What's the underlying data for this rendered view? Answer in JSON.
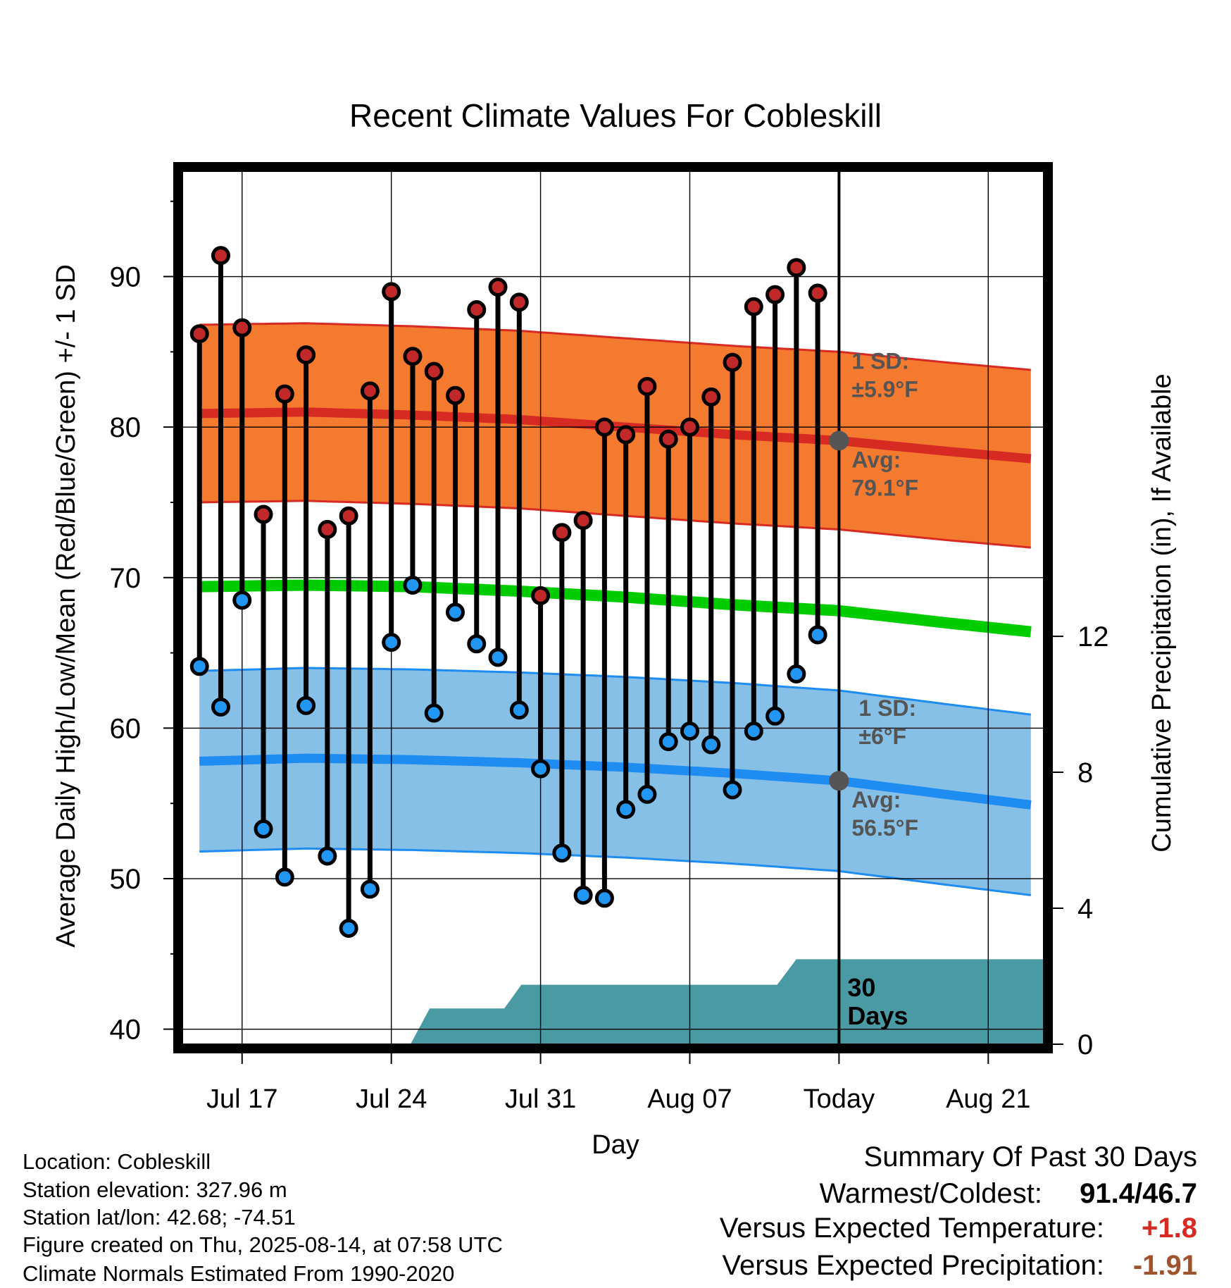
{
  "chart_data": {
    "type": "line",
    "title": "Recent Climate Values For Cobleskill",
    "xlabel": "Day",
    "ylabel": "Average Daily High/Low/Mean (Red/Blue/Green) +/- 1 SD",
    "y2label": "Cumulative Precipitation (in), If Available",
    "x_tick_labels": [
      "Jul 17",
      "Jul 24",
      "Jul 31",
      "Aug 07",
      "Today",
      "Aug 21"
    ],
    "x_tick_days": [
      0,
      7,
      14,
      21,
      28,
      35
    ],
    "x_range_days": [
      -2.8,
      37.6
    ],
    "today_day": 28,
    "ylim": [
      39,
      97
    ],
    "y_ticks": [
      40,
      50,
      60,
      70,
      80,
      90
    ],
    "y2_ticks": [
      0,
      4,
      8,
      12
    ],
    "y2_scale": {
      "top_value": 12,
      "top_temp": 66.1
    },
    "colors": {
      "high_band": "#f47a30",
      "high_band_edge": "#d62a22",
      "high_avg": "#d62a22",
      "low_band": "#86c0e6",
      "low_band_edge": "#1e8cf0",
      "low_avg": "#1e8cf0",
      "mean": "#00cc00",
      "precip": "#4a9aa3",
      "high_dot": "#c0282a",
      "low_dot": "#2196f3",
      "avg_marker": "#555555",
      "annotation": "#555555",
      "departure_temp": "#d62a22",
      "departure_precip": "#a0522d"
    },
    "normals": {
      "days": [
        -2,
        3,
        8,
        13,
        18,
        23,
        28,
        33,
        37
      ],
      "high_avg": [
        80.9,
        81.0,
        80.8,
        80.5,
        80.0,
        79.5,
        79.1,
        78.4,
        77.9
      ],
      "low_avg": [
        57.8,
        58.0,
        57.9,
        57.7,
        57.4,
        57.0,
        56.5,
        55.6,
        54.9
      ],
      "mean": [
        69.4,
        69.5,
        69.4,
        69.1,
        68.7,
        68.2,
        67.8,
        67.0,
        66.4
      ],
      "high_sd": 5.9,
      "low_sd": 6.0
    },
    "series": [
      {
        "name": "High",
        "days": [
          -2,
          -1,
          0,
          1,
          2,
          3,
          4,
          5,
          6,
          7,
          8,
          9,
          10,
          11,
          12,
          13,
          14,
          15,
          16,
          17,
          18,
          19,
          20,
          21,
          22,
          23,
          24,
          25,
          26,
          27
        ],
        "values": [
          86.2,
          91.4,
          86.6,
          74.2,
          82.2,
          84.8,
          73.2,
          74.1,
          82.4,
          89.0,
          84.7,
          83.7,
          82.1,
          87.8,
          89.3,
          88.3,
          68.8,
          73.0,
          73.8,
          80.0,
          79.5,
          82.7,
          79.2,
          80.0,
          82.0,
          84.3,
          88.0,
          88.8,
          90.6,
          88.9
        ]
      },
      {
        "name": "Low",
        "days": [
          -2,
          -1,
          0,
          1,
          2,
          3,
          4,
          5,
          6,
          7,
          8,
          9,
          10,
          11,
          12,
          13,
          14,
          15,
          16,
          17,
          18,
          19,
          20,
          21,
          22,
          23,
          24,
          25,
          26,
          27
        ],
        "values": [
          64.1,
          61.4,
          68.5,
          53.3,
          50.1,
          61.5,
          51.5,
          46.7,
          49.3,
          65.7,
          69.5,
          61.0,
          67.7,
          65.6,
          64.7,
          61.2,
          57.3,
          51.7,
          48.9,
          48.7,
          54.6,
          55.6,
          59.1,
          59.8,
          58.9,
          55.9,
          59.8,
          60.8,
          63.6,
          66.2
        ]
      }
    ],
    "precipitation": {
      "days": [
        7.9,
        8.8,
        12.3,
        13.1,
        25.1,
        26.0,
        37.6
      ],
      "cumulative_in": [
        0,
        1.05,
        1.05,
        1.75,
        1.75,
        2.5,
        2.5
      ]
    },
    "annotations": {
      "high_sd_label": "1 SD:",
      "high_sd_value": "±5.9°F",
      "high_avg_label": "Avg:",
      "high_avg_value": "79.1°F",
      "low_sd_label": "1 SD:",
      "low_sd_value": "±6°F",
      "low_avg_label": "Avg:",
      "low_avg_value": "56.5°F",
      "days_number": "30",
      "days_word": "Days"
    }
  },
  "metadata_text": {
    "location": "Location: Cobleskill",
    "elevation": "Station elevation: 327.96 m",
    "latlon": "Station lat/lon: 42.68; -74.51",
    "created": "Figure created on Thu, 2025-08-14, at 07:58 UTC",
    "normals": "Climate Normals Estimated From 1990-2020"
  },
  "summary": {
    "title": "Summary Of Past 30 Days",
    "warm_cold_label": "Warmest/Coldest:",
    "warm_cold_value": "91.4/46.7",
    "temp_label": "Versus Expected Temperature:",
    "temp_value": "+1.8",
    "precip_label": "Versus Expected Precipitation:",
    "precip_value": "-1.91"
  }
}
